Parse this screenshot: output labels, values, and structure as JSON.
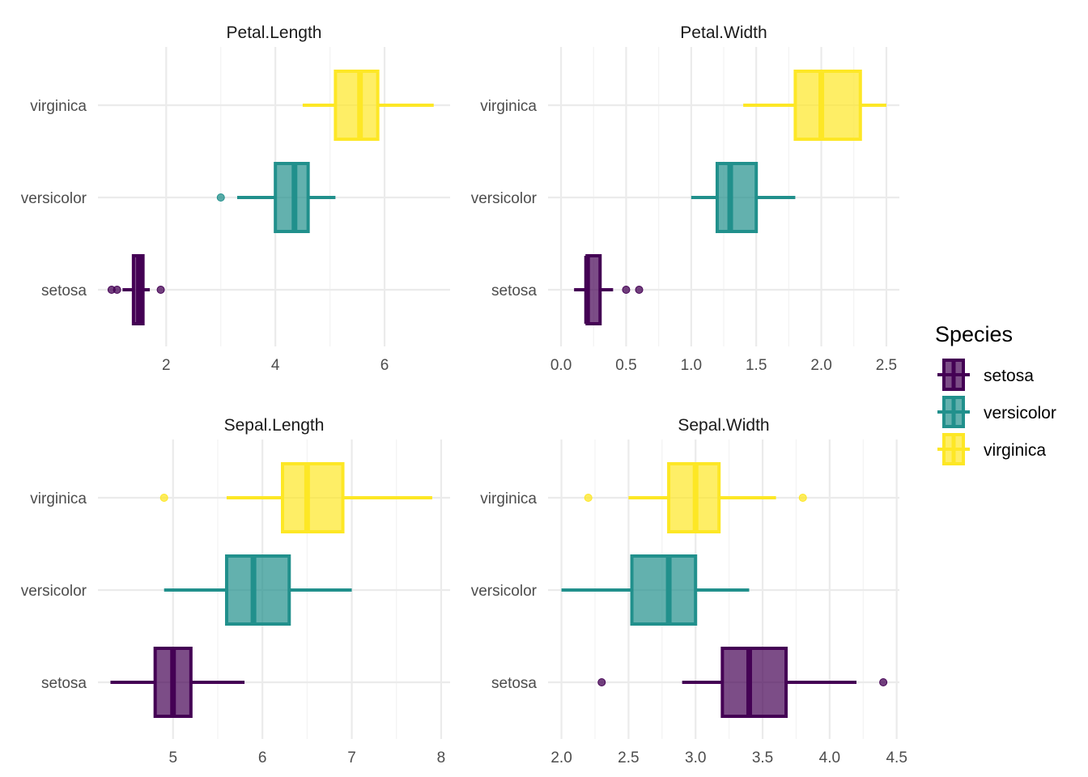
{
  "chart_data": {
    "type": "boxplot",
    "orientation": "horizontal",
    "legend": {
      "title": "Species",
      "position": "right",
      "entries": [
        {
          "key": "setosa",
          "label": "setosa",
          "color": "#440154"
        },
        {
          "key": "versicolor",
          "label": "versicolor",
          "color": "#21908C"
        },
        {
          "key": "virginica",
          "label": "virginica",
          "color": "#FDE725"
        }
      ]
    },
    "categories": [
      "virginica",
      "versicolor",
      "setosa"
    ],
    "panels": [
      {
        "title": "Petal.Length",
        "xlim": [
          0.75,
          7.2
        ],
        "xticks": [
          2,
          4,
          6
        ],
        "xtick_labels": [
          "2",
          "4",
          "6"
        ],
        "boxes": [
          {
            "species": "virginica",
            "whisker_low": 4.5,
            "q1": 5.1,
            "median": 5.55,
            "q3": 5.875,
            "whisker_high": 6.9,
            "outliers": []
          },
          {
            "species": "versicolor",
            "whisker_low": 3.3,
            "q1": 4.0,
            "median": 4.35,
            "q3": 4.6,
            "whisker_high": 5.1,
            "outliers": [
              3.0
            ]
          },
          {
            "species": "setosa",
            "whisker_low": 1.2,
            "q1": 1.4,
            "median": 1.5,
            "q3": 1.575,
            "whisker_high": 1.7,
            "outliers": [
              1.0,
              1.1,
              1.9
            ]
          }
        ]
      },
      {
        "title": "Petal.Width",
        "xlim": [
          -0.1,
          2.6
        ],
        "xticks": [
          0.0,
          0.5,
          1.0,
          1.5,
          2.0,
          2.5
        ],
        "xtick_labels": [
          "0.0",
          "0.5",
          "1.0",
          "1.5",
          "2.0",
          "2.5"
        ],
        "boxes": [
          {
            "species": "virginica",
            "whisker_low": 1.4,
            "q1": 1.8,
            "median": 2.0,
            "q3": 2.3,
            "whisker_high": 2.5,
            "outliers": []
          },
          {
            "species": "versicolor",
            "whisker_low": 1.0,
            "q1": 1.2,
            "median": 1.3,
            "q3": 1.5,
            "whisker_high": 1.8,
            "outliers": []
          },
          {
            "species": "setosa",
            "whisker_low": 0.1,
            "q1": 0.2,
            "median": 0.2,
            "q3": 0.3,
            "whisker_high": 0.4,
            "outliers": [
              0.5,
              0.6
            ]
          }
        ]
      },
      {
        "title": "Sepal.Length",
        "xlim": [
          4.16,
          8.1
        ],
        "xticks": [
          5,
          6,
          7,
          8
        ],
        "xtick_labels": [
          "5",
          "6",
          "7",
          "8"
        ],
        "boxes": [
          {
            "species": "virginica",
            "whisker_low": 5.6,
            "q1": 6.225,
            "median": 6.5,
            "q3": 6.9,
            "whisker_high": 7.9,
            "outliers": [
              4.9
            ]
          },
          {
            "species": "versicolor",
            "whisker_low": 4.9,
            "q1": 5.6,
            "median": 5.9,
            "q3": 6.3,
            "whisker_high": 7.0,
            "outliers": []
          },
          {
            "species": "setosa",
            "whisker_low": 4.3,
            "q1": 4.8,
            "median": 5.0,
            "q3": 5.2,
            "whisker_high": 5.8,
            "outliers": []
          }
        ]
      },
      {
        "title": "Sepal.Width",
        "xlim": [
          1.9,
          4.52
        ],
        "xticks": [
          2.0,
          2.5,
          3.0,
          3.5,
          4.0,
          4.5
        ],
        "xtick_labels": [
          "2.0",
          "2.5",
          "3.0",
          "3.5",
          "4.0",
          "4.5"
        ],
        "boxes": [
          {
            "species": "virginica",
            "whisker_low": 2.5,
            "q1": 2.8,
            "median": 3.0,
            "q3": 3.175,
            "whisker_high": 3.6,
            "outliers": [
              2.2,
              3.8
            ]
          },
          {
            "species": "versicolor",
            "whisker_low": 2.0,
            "q1": 2.525,
            "median": 2.8,
            "q3": 3.0,
            "whisker_high": 3.4,
            "outliers": []
          },
          {
            "species": "setosa",
            "whisker_low": 2.9,
            "q1": 3.2,
            "median": 3.4,
            "q3": 3.675,
            "whisker_high": 4.2,
            "outliers": [
              2.3,
              4.4
            ]
          }
        ]
      }
    ]
  }
}
